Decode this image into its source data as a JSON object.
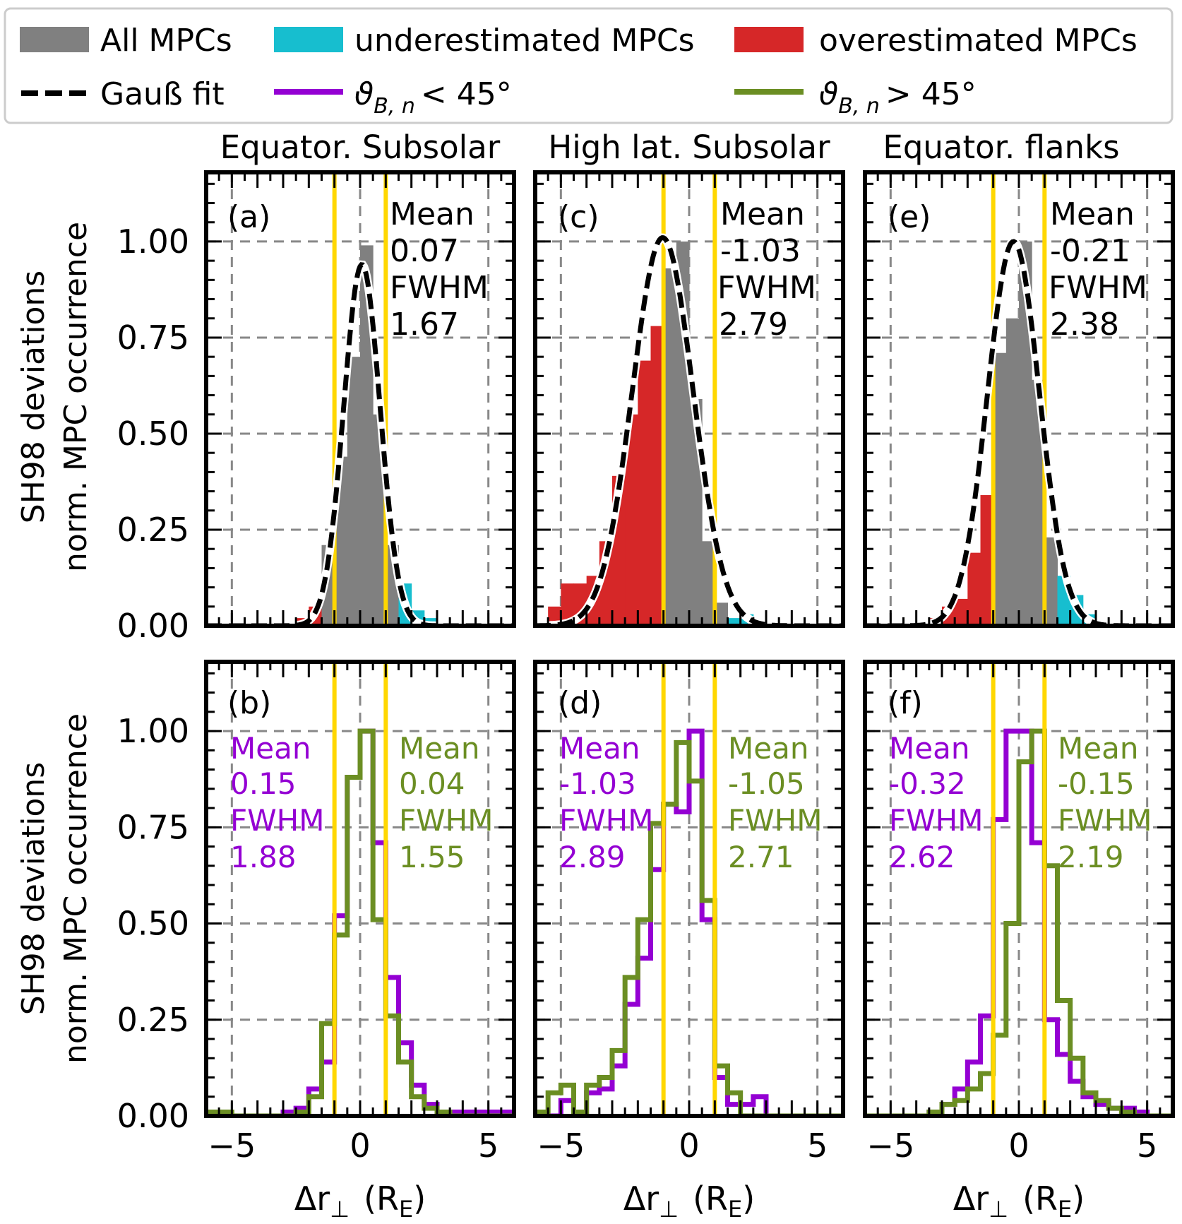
{
  "legend": {
    "all_label": "All MPCs",
    "under_label": "underestimated MPCs",
    "over_label": "overestimated MPCs",
    "gauss_label": "Gauß fit",
    "low_label": "ϑ",
    "low_sub": "B, n",
    "low_rest": "< 45°",
    "high_label": "ϑ",
    "high_sub": "B, n",
    "high_rest": "> 45°"
  },
  "axes": {
    "ylabel_line1": "SH98 deviations",
    "ylabel_line2": "norm. MPC occurrence",
    "xlabel_main": "Δr",
    "xlabel_perp": "⊥",
    "xlabel_unit": "(R",
    "xlabel_sub": "E",
    "xlabel_close": ")",
    "xticks": [
      "−5",
      "0",
      "5"
    ],
    "yticks": [
      "0.00",
      "0.25",
      "0.50",
      "0.75",
      "1.00"
    ],
    "xlim": [
      -6,
      6
    ],
    "ylim": [
      0,
      1.18
    ]
  },
  "colors": {
    "all": "#808080",
    "under": "#17becf",
    "over": "#d62728",
    "low": "#9400d3",
    "high": "#6b8e23",
    "vline": "#ffd700",
    "grid": "#888888"
  },
  "chart_data": [
    {
      "panel": "(a)",
      "title": "Equator. Subsolar",
      "type": "bar",
      "stats": {
        "mean_label": "Mean",
        "mean": "0.07",
        "fwhm_label": "FWHM",
        "fwhm": "1.67"
      },
      "gauss": {
        "mu": 0.07,
        "fwhm": 1.67,
        "amp": 0.94
      },
      "vlines": [
        -1,
        1
      ],
      "bins": [
        {
          "x0": -2.5,
          "x1": -2.0,
          "v": 0.02,
          "c": "over"
        },
        {
          "x0": -2.0,
          "x1": -1.5,
          "v": 0.05,
          "c": "over"
        },
        {
          "x0": -1.5,
          "x1": -1.0,
          "v": 0.21,
          "c": "all"
        },
        {
          "x0": -1.0,
          "x1": -0.5,
          "v": 0.44,
          "c": "all"
        },
        {
          "x0": -0.5,
          "x1": 0.0,
          "v": 0.7,
          "c": "all"
        },
        {
          "x0": 0.0,
          "x1": 0.5,
          "v": 0.99,
          "c": "all"
        },
        {
          "x0": 0.5,
          "x1": 1.0,
          "v": 0.55,
          "c": "all"
        },
        {
          "x0": 1.0,
          "x1": 1.5,
          "v": 0.21,
          "c": "all"
        },
        {
          "x0": 1.5,
          "x1": 2.0,
          "v": 0.11,
          "c": "under"
        },
        {
          "x0": 2.0,
          "x1": 2.5,
          "v": 0.04,
          "c": "under"
        },
        {
          "x0": 2.5,
          "x1": 3.0,
          "v": 0.02,
          "c": "under"
        },
        {
          "x0": 3.0,
          "x1": 3.5,
          "v": 0.01,
          "c": "under"
        }
      ]
    },
    {
      "panel": "(c)",
      "title": "High lat. Subsolar",
      "type": "bar",
      "stats": {
        "mean_label": "Mean",
        "mean": "-1.03",
        "fwhm_label": "FWHM",
        "fwhm": "2.79"
      },
      "gauss": {
        "mu": -1.03,
        "fwhm": 2.79,
        "amp": 1.01
      },
      "vlines": [
        -1,
        1
      ],
      "bins": [
        {
          "x0": -6.0,
          "x1": -5.5,
          "v": 0.01,
          "c": "over"
        },
        {
          "x0": -5.5,
          "x1": -5.0,
          "v": 0.05,
          "c": "over"
        },
        {
          "x0": -5.0,
          "x1": -4.5,
          "v": 0.11,
          "c": "over"
        },
        {
          "x0": -4.5,
          "x1": -4.0,
          "v": 0.11,
          "c": "over"
        },
        {
          "x0": -4.0,
          "x1": -3.5,
          "v": 0.13,
          "c": "over"
        },
        {
          "x0": -3.5,
          "x1": -3.0,
          "v": 0.22,
          "c": "over"
        },
        {
          "x0": -3.0,
          "x1": -2.5,
          "v": 0.39,
          "c": "over"
        },
        {
          "x0": -2.5,
          "x1": -2.0,
          "v": 0.55,
          "c": "over"
        },
        {
          "x0": -2.0,
          "x1": -1.5,
          "v": 0.69,
          "c": "over"
        },
        {
          "x0": -1.5,
          "x1": -1.0,
          "v": 0.78,
          "c": "over"
        },
        {
          "x0": -1.0,
          "x1": -0.5,
          "v": 0.93,
          "c": "all"
        },
        {
          "x0": -0.5,
          "x1": 0.0,
          "v": 1.0,
          "c": "all"
        },
        {
          "x0": 0.0,
          "x1": 0.5,
          "v": 0.59,
          "c": "all"
        },
        {
          "x0": 0.5,
          "x1": 1.0,
          "v": 0.22,
          "c": "all"
        },
        {
          "x0": 1.0,
          "x1": 1.5,
          "v": 0.06,
          "c": "all"
        },
        {
          "x0": 1.5,
          "x1": 2.0,
          "v": 0.02,
          "c": "under"
        },
        {
          "x0": 2.0,
          "x1": 2.5,
          "v": 0.03,
          "c": "under"
        },
        {
          "x0": 2.5,
          "x1": 3.0,
          "v": 0.01,
          "c": "under"
        }
      ]
    },
    {
      "panel": "(e)",
      "title": "Equator. flanks",
      "type": "bar",
      "stats": {
        "mean_label": "Mean",
        "mean": "-0.21",
        "fwhm_label": "FWHM",
        "fwhm": "2.38"
      },
      "gauss": {
        "mu": -0.21,
        "fwhm": 2.38,
        "amp": 1.0
      },
      "vlines": [
        -1,
        1
      ],
      "bins": [
        {
          "x0": -3.5,
          "x1": -3.0,
          "v": 0.02,
          "c": "over"
        },
        {
          "x0": -3.0,
          "x1": -2.5,
          "v": 0.05,
          "c": "over"
        },
        {
          "x0": -2.5,
          "x1": -2.0,
          "v": 0.07,
          "c": "over"
        },
        {
          "x0": -2.0,
          "x1": -1.5,
          "v": 0.19,
          "c": "over"
        },
        {
          "x0": -1.5,
          "x1": -1.0,
          "v": 0.34,
          "c": "over"
        },
        {
          "x0": -1.0,
          "x1": -0.5,
          "v": 0.71,
          "c": "all"
        },
        {
          "x0": -0.5,
          "x1": 0.0,
          "v": 0.8,
          "c": "all"
        },
        {
          "x0": 0.0,
          "x1": 0.5,
          "v": 1.0,
          "c": "all"
        },
        {
          "x0": 0.5,
          "x1": 1.0,
          "v": 0.64,
          "c": "all"
        },
        {
          "x0": 1.0,
          "x1": 1.5,
          "v": 0.23,
          "c": "all"
        },
        {
          "x0": 1.5,
          "x1": 2.0,
          "v": 0.13,
          "c": "under"
        },
        {
          "x0": 2.0,
          "x1": 2.5,
          "v": 0.08,
          "c": "under"
        },
        {
          "x0": 2.5,
          "x1": 3.0,
          "v": 0.03,
          "c": "under"
        }
      ]
    },
    {
      "panel": "(b)",
      "title": "",
      "type": "line",
      "stats_low": {
        "mean_label": "Mean",
        "mean": "0.15",
        "fwhm_label": "FWHM",
        "fwhm": "1.88"
      },
      "stats_high": {
        "mean_label": "Mean",
        "mean": "0.04",
        "fwhm_label": "FWHM",
        "fwhm": "1.55"
      },
      "vlines": [
        -1,
        1
      ],
      "edges": [
        -6.0,
        -5.5,
        -5.0,
        -4.5,
        -4.0,
        -3.5,
        -3.0,
        -2.5,
        -2.0,
        -1.5,
        -1.0,
        -0.5,
        0.0,
        0.5,
        1.0,
        1.5,
        2.0,
        2.5,
        3.0,
        3.5,
        4.0,
        4.5,
        5.0,
        5.5,
        6.0
      ],
      "series": [
        {
          "key": "low",
          "values": [
            0,
            0,
            0,
            0,
            0,
            0,
            0.01,
            0.02,
            0.07,
            0.14,
            0.52,
            0.88,
            1.0,
            0.71,
            0.36,
            0.19,
            0.08,
            0.03,
            0.01,
            0.01,
            0.01,
            0.01,
            0.01,
            0.01
          ]
        },
        {
          "key": "high",
          "values": [
            0.01,
            0.01,
            0,
            0,
            0,
            0,
            0,
            0.01,
            0.05,
            0.24,
            0.47,
            0.88,
            1.0,
            0.51,
            0.26,
            0.14,
            0.05,
            0.02,
            0.01,
            0,
            0,
            0,
            0,
            0
          ]
        }
      ]
    },
    {
      "panel": "(d)",
      "title": "",
      "type": "line",
      "stats_low": {
        "mean_label": "Mean",
        "mean": "-1.03",
        "fwhm_label": "FWHM",
        "fwhm": "2.89"
      },
      "stats_high": {
        "mean_label": "Mean",
        "mean": "-1.05",
        "fwhm_label": "FWHM",
        "fwhm": "2.71"
      },
      "vlines": [
        -1,
        1
      ],
      "edges": [
        -6.0,
        -5.5,
        -5.0,
        -4.5,
        -4.0,
        -3.5,
        -3.0,
        -2.5,
        -2.0,
        -1.5,
        -1.0,
        -0.5,
        0.0,
        0.5,
        1.0,
        1.5,
        2.0,
        2.5,
        3.0,
        3.5,
        4.0,
        4.5,
        5.0,
        5.5,
        6.0
      ],
      "series": [
        {
          "key": "low",
          "values": [
            0,
            0,
            0.04,
            0.01,
            0.06,
            0.07,
            0.13,
            0.29,
            0.41,
            0.64,
            0.81,
            0.79,
            1.0,
            0.51,
            0.1,
            0.03,
            0.03,
            0.05,
            0,
            0,
            0,
            0,
            0,
            0
          ]
        },
        {
          "key": "high",
          "values": [
            0.01,
            0.06,
            0.08,
            0.01,
            0.08,
            0.1,
            0.17,
            0.36,
            0.51,
            0.76,
            0.81,
            0.97,
            0.87,
            0.56,
            0.13,
            0.06,
            0,
            0,
            0,
            0,
            0,
            0,
            0,
            0
          ]
        }
      ]
    },
    {
      "panel": "(f)",
      "title": "",
      "type": "line",
      "stats_low": {
        "mean_label": "Mean",
        "mean": "-0.32",
        "fwhm_label": "FWHM",
        "fwhm": "2.62"
      },
      "stats_high": {
        "mean_label": "Mean",
        "mean": "-0.15",
        "fwhm_label": "FWHM",
        "fwhm": "2.19"
      },
      "vlines": [
        -1,
        1
      ],
      "edges": [
        -6.0,
        -5.5,
        -5.0,
        -4.5,
        -4.0,
        -3.5,
        -3.0,
        -2.5,
        -2.0,
        -1.5,
        -1.0,
        -0.5,
        0.0,
        0.5,
        1.0,
        1.5,
        2.0,
        2.5,
        3.0,
        3.5,
        4.0,
        4.5,
        5.0,
        5.5,
        6.0
      ],
      "series": [
        {
          "key": "low",
          "values": [
            0,
            0,
            0,
            0,
            0,
            0.01,
            0.03,
            0.07,
            0.14,
            0.26,
            0.77,
            1.0,
            1.0,
            0.71,
            0.25,
            0.16,
            0.09,
            0.05,
            0.03,
            0.02,
            0.02,
            0.01,
            0,
            0
          ]
        },
        {
          "key": "high",
          "values": [
            0,
            0,
            0,
            0,
            0,
            0.01,
            0.03,
            0.04,
            0.07,
            0.11,
            0.21,
            0.5,
            0.92,
            1.0,
            0.65,
            0.3,
            0.15,
            0.06,
            0.04,
            0.02,
            0.01,
            0,
            0,
            0
          ]
        }
      ]
    }
  ]
}
